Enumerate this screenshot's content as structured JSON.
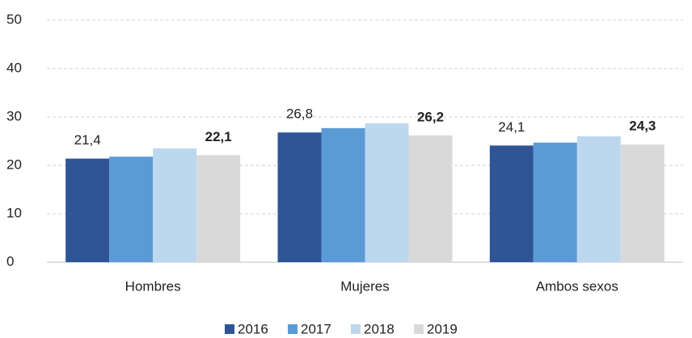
{
  "chart_data": {
    "type": "bar",
    "categories": [
      "Hombres",
      "Mujeres",
      "Ambos sexos"
    ],
    "series": [
      {
        "name": "2016",
        "color": "#2f5597",
        "values": [
          21.4,
          26.8,
          24.1
        ],
        "value_labels": [
          "21,4",
          "26,8",
          "24,1"
        ]
      },
      {
        "name": "2017",
        "color": "#5b9bd5",
        "values": [
          21.8,
          27.7,
          24.7
        ]
      },
      {
        "name": "2018",
        "color": "#bdd7ee",
        "values": [
          23.5,
          28.7,
          26.0
        ]
      },
      {
        "name": "2019",
        "color": "#d9d9d9",
        "values": [
          22.1,
          26.2,
          24.3
        ],
        "value_labels": [
          "22,1",
          "26,2",
          "24,3"
        ]
      }
    ],
    "ylim": [
      0,
      50
    ],
    "yticks": [
      0,
      10,
      20,
      30,
      40,
      50
    ],
    "grid": true,
    "legend": "bottom"
  }
}
